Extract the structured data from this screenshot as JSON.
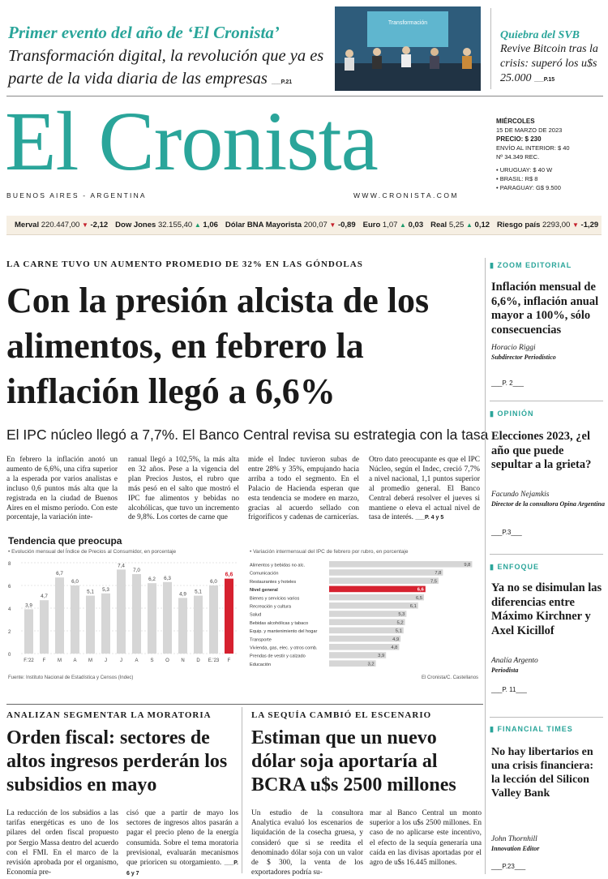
{
  "promo": {
    "kicker": "Primer evento del año de ‘El Cronista’",
    "headline": "Transformación digital, la revolución que ya es parte de la vida diaria de las empresas",
    "page": "P.21",
    "photo_screen_text": "Transformación"
  },
  "svb": {
    "kicker": "Quiebra del SVB",
    "headline": "Revive Bitcoin tras la crisis: superó los u$s 25.000",
    "page": "P.15"
  },
  "masthead": {
    "logo": "El Cronista",
    "city": "BUENOS AIRES - ARGENTINA",
    "website": "WWW.CRONISTA.COM",
    "day": "MIÉRCOLES",
    "date": "15 DE MARZO DE 2023",
    "price": "PRECIO: $ 230",
    "shipping": "ENVÍO AL INTERIOR: $ 40",
    "issue": "Nº 34.349 REC.",
    "prices_abroad": [
      "• URUGUAY: $ 40 W",
      "• BRASIL: R$ 8",
      "• PARAGUAY: G$ 9.500"
    ]
  },
  "ticker": [
    {
      "label": "Merval",
      "value": "220.447,00",
      "dir": "down",
      "change": "-2,12"
    },
    {
      "label": "Dow Jones",
      "value": "32.155,40",
      "dir": "up",
      "change": "1,06"
    },
    {
      "label": "Dólar BNA Mayorista",
      "value": "200,07",
      "dir": "down",
      "change": "-0,89"
    },
    {
      "label": "Euro",
      "value": "1,07",
      "dir": "up",
      "change": "0,03"
    },
    {
      "label": "Real",
      "value": "5,25",
      "dir": "up",
      "change": "0,12"
    },
    {
      "label": "Riesgo país",
      "value": "2293,00",
      "dir": "down",
      "change": "-1,29"
    }
  ],
  "main": {
    "kicker": "LA CARNE TUVO UN AUMENTO PROMEDIO DE 32% EN LAS GÓNDOLAS",
    "headline": "Con la presión alcista de los alimentos, en febrero la inflación llegó a 6,6%",
    "deck": "El IPC núcleo llegó a 7,7%. El Banco Central revisa su estrategia con la tasa",
    "columns": [
      "En febrero la inflación anotó un aumento de 6,6%, una cifra superior a la esperada por varios analistas e incluso 0,6 puntos más alta que la registrada en la ciudad de Buenos Aires en el mismo período. Con este porcentaje, la variación inte-",
      "ranual llegó a 102,5%, la más alta en 32 años. Pese a la vigencia del plan Precios Justos, el rubro que más pesó en el salto que mostró el IPC fue alimentos y bebidas no alcohólicas, que tuvo un incremento de 9,8%. Los cortes de carne que",
      "mide el Indec tuvieron subas de entre 28% y 35%, empujando hacia arriba a todo el segmento. En el Palacio de Hacienda esperan que esta tendencia se modere en marzo, gracias al acuerdo sellado con frigoríficos y cadenas de carnicerías.",
      "Otro dato preocupante es que el IPC Núcleo, según el Indec, creció 7,7% a nivel nacional, 1,1 puntos superior al promedio general. El Banco Central deberá resolver el jueves si mantiene o eleva el actual nivel de tasa de interés."
    ],
    "col4_page": "P. 4 y 5"
  },
  "chart_title": "Tendencia que preocupa",
  "chart_data": [
    {
      "type": "bar",
      "subtitle": "• Evolución mensual del Índice de Precios al Consumidor, en porcentaje",
      "categories": [
        "F.'22",
        "F",
        "M",
        "A",
        "M",
        "J",
        "J",
        "A",
        "S",
        "O",
        "N",
        "D",
        "E.'23",
        "F"
      ],
      "values": [
        3.9,
        4.7,
        6.7,
        6.0,
        5.1,
        5.3,
        7.4,
        7.0,
        6.2,
        6.3,
        4.9,
        5.1,
        6.0,
        6.6
      ],
      "highlight_index": 13,
      "ylim": [
        0,
        8
      ],
      "yticks": [
        0,
        2,
        4,
        6,
        8
      ],
      "bar_color": "#d6d6d6",
      "highlight_color": "#d6212f"
    },
    {
      "type": "bar",
      "orientation": "horizontal",
      "subtitle": "• Variación intermensual del IPC de febrero por rubro, en porcentaje",
      "categories": [
        "Alimentos y bebidas no alc.",
        "Comunicación",
        "Restaurantes y hoteles",
        "Nivel general",
        "Bienes y servicios varios",
        "Recreación y cultura",
        "Salud",
        "Bebidas alcohólicas y tabaco",
        "Equip. y mantenimiento del hogar",
        "Transporte",
        "Vivienda, gas, elec. y otros comb.",
        "Prendas de vestir y calzado",
        "Educación"
      ],
      "values": [
        9.8,
        7.8,
        7.5,
        6.6,
        6.5,
        6.1,
        5.3,
        5.2,
        5.1,
        4.9,
        4.8,
        3.9,
        3.2
      ],
      "highlight_index": 3,
      "xlim": [
        0,
        10
      ],
      "bar_color": "#d6d6d6",
      "highlight_color": "#d6212f"
    }
  ],
  "chart_source": "Fuente: Instituto Nacional de Estadística y Censos (Indec)",
  "chart_credit": "El Cronista/C. Castellanos",
  "story2": {
    "kicker": "ANALIZAN SEGMENTAR LA MORATORIA",
    "headline": "Orden fiscal: sectores de altos ingresos perderán los subsidios en mayo",
    "columns": [
      "La reducción de los subsidios a las tarifas energéticas es uno de los pilares del orden fiscal propuesto por Sergio Massa dentro del acuerdo con el FMI. En el marco de la revisión aprobada por el organismo, Economía pre-",
      "cisó que a partir de mayo los sectores de ingresos altos pasarán a pagar el precio pleno de la energía consumida. Sobre el tema moratoria previsional, evaluarán mecanismos que prioricen su otorgamiento."
    ],
    "page": "P. 6 y 7"
  },
  "story3": {
    "kicker": "LA SEQUÍA CAMBIÓ EL ESCENARIO",
    "headline": "Estiman que un nuevo dólar soja aportaría al BCRA u$s 2500 millones",
    "columns": [
      "Un estudio de la consultora Analytica evaluó los escenarios de liquidación de la cosecha gruesa, y consideró que si se reedita el denominado dólar soja con un valor de $ 300, la venta de los exportadores podría su-",
      "mar al Banco Central un monto superior a los u$s 2500 millones. En caso de no aplicarse este incentivo, el efecto de la sequía generaría una caída en las divisas aportadas por el agro de u$s 16.445 millones."
    ]
  },
  "sidebar": [
    {
      "section": "ZOOM EDITORIAL",
      "headline": "Inflación mensual de 6,6%, inflación anual mayor a 100%, sólo consecuencias",
      "author": "Horacio Riggi",
      "role": "Subdirector Periodístico",
      "page": "P. 2"
    },
    {
      "section": "OPINIÓN",
      "headline": "Elecciones 2023, ¿el año que puede sepultar a la grieta?",
      "author": "Facundo Nejamkis",
      "role": "Director de la consultora Opina Argentina",
      "page": "P.3"
    },
    {
      "section": "ENFOQUE",
      "headline": "Ya no se disimulan las diferencias entre Máximo Kirchner y Axel Kicillof",
      "author": "Analía Argento",
      "role": "Periodista",
      "page": "P. 11"
    },
    {
      "section": "FINANCIAL TIMES",
      "headline": "No hay libertarios en una crisis financiera: la lección del Silicon Valley Bank",
      "author": "John Thornhill",
      "role": "Innovation Editor",
      "page": "P.23"
    }
  ],
  "colors": {
    "brand_teal": "#2aa59a",
    "alert_red": "#d6212f"
  }
}
